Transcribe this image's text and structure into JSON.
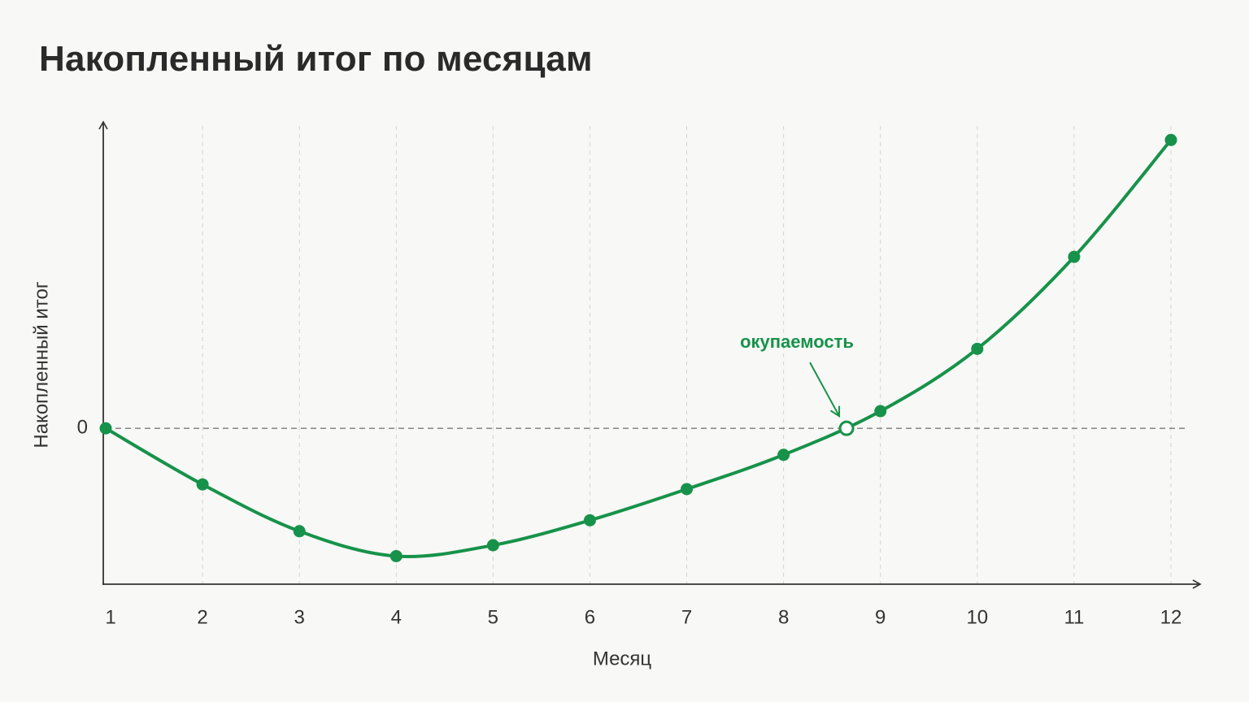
{
  "colors": {
    "background": "#f8f8f6",
    "line": "#17924a",
    "axis": "#333333",
    "grid": "#d4d4d4",
    "zero_line": "#7a7a7a",
    "annotation": "#17924a"
  },
  "chart_data": {
    "type": "line",
    "title": "Накопленный итог по месяцам",
    "xlabel": "Месяц",
    "ylabel": "Накопленный итог",
    "x": [
      1,
      2,
      3,
      4,
      5,
      6,
      7,
      8,
      9,
      10,
      11,
      12
    ],
    "x_tick_labels": [
      "1",
      "2",
      "3",
      "4",
      "5",
      "6",
      "7",
      "8",
      "9",
      "10",
      "11",
      "12"
    ],
    "y_tick_labels": [
      "0"
    ],
    "xlim": [
      1,
      12.3
    ],
    "ylim": [
      -10,
      19.4
    ],
    "grid": "vertical dashed",
    "legend": "none",
    "series": [
      {
        "values": [
          0,
          -3.6,
          -6.6,
          -8.2,
          -7.5,
          -5.9,
          -3.9,
          -1.7,
          1.1,
          5.1,
          11.0,
          18.5
        ]
      }
    ],
    "zero_reference_line": {
      "y": 0,
      "style": "dashed"
    },
    "annotations": [
      {
        "text": "окупаемость",
        "x": 8.65,
        "y": 0,
        "marker": "hollow circle",
        "arrow": "pointing down-right to marker"
      }
    ]
  }
}
